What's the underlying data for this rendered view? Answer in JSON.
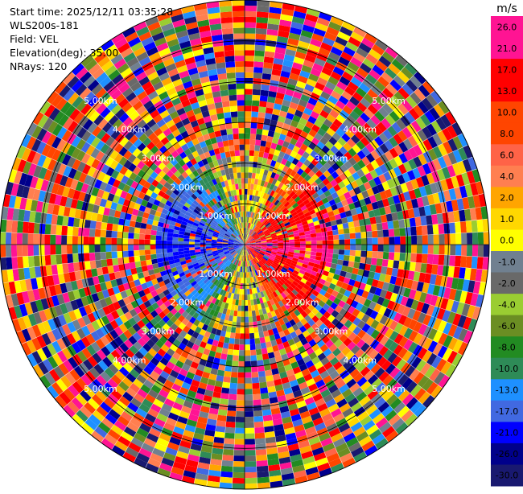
{
  "info": {
    "start_time": "Start time: 2025/12/11 03:35:28",
    "station": "WLS200s-181",
    "field": "Field: VEL",
    "elevation": "Elevation(deg): 35.00",
    "nrays": "NRays: 120"
  },
  "chart_data": {
    "type": "heatmap",
    "projection": "polar-ppi",
    "field": "VEL",
    "units": "m/s",
    "n_rays": 120,
    "range_rings_km": [
      1.0,
      2.0,
      3.0,
      4.0,
      5.0
    ],
    "range_ring_labels": [
      "1.00km",
      "2.00km",
      "3.00km",
      "4.00km",
      "5.00km"
    ],
    "max_range_km": 6.0,
    "approx_range_gates": 44,
    "colorbar": {
      "units_label": "m/s",
      "ticks": [
        "26.0",
        "21.0",
        "17.0",
        "13.0",
        "10.0",
        "8.0",
        "6.0",
        "4.0",
        "2.0",
        "1.0",
        "0.0",
        "-1.0",
        "-2.0",
        "-4.0",
        "-6.0",
        "-8.0",
        "-10.0",
        "-13.0",
        "-17.0",
        "-21.0",
        "-26.0",
        "-30.0"
      ],
      "colors": [
        "#ff1493",
        "#ff1493",
        "#ff0000",
        "#ff0000",
        "#ff4500",
        "#ff4500",
        "#ff6347",
        "#ff7f50",
        "#ffa500",
        "#ffd700",
        "#ffff00",
        "#708090",
        "#696969",
        "#9acd32",
        "#6b8e23",
        "#228b22",
        "#2e8b57",
        "#1e90ff",
        "#4169e1",
        "#0000ff",
        "#00008b",
        "#191970"
      ]
    },
    "pattern_summary": {
      "near_field_km": 1.6,
      "approaching_sector_deg": [
        200,
        340
      ],
      "receding_sector_deg": [
        30,
        160
      ],
      "far_field": "noise"
    }
  }
}
